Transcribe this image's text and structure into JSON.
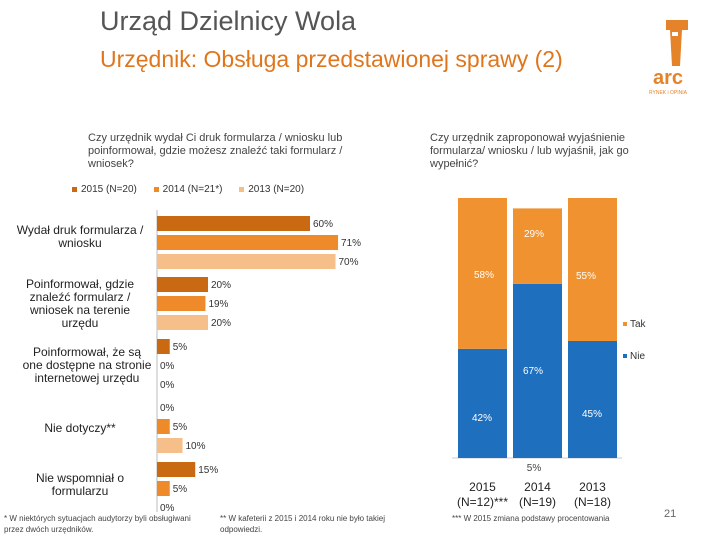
{
  "header": {
    "title": "Urząd Dzielnicy Wola",
    "subtitle": "Urzędnik: Obsługa przedstawionej sprawy (2)"
  },
  "logo": {
    "text": "arc",
    "tagline": "RYNEK i OPINIA"
  },
  "chart_data": [
    {
      "type": "bar",
      "orientation": "horizontal",
      "title": "Czy urzędnik wydał Ci druk formularza / wniosku lub poinformował, gdzie możesz znaleźć taki formularz / wniosek?",
      "categories": [
        "Wydał druk formularza / wniosku",
        "Poinformował, gdzie znaleźć formularz / wniosek na terenie urzędu",
        "Poinformował, że są one dostępne na stronie internetowej urzędu",
        "Nie dotyczy**",
        "Nie wspomniał o formularzu"
      ],
      "series": [
        {
          "name": "2015 (N=20)",
          "color": "#c96a13",
          "values": [
            60,
            20,
            5,
            0,
            15
          ],
          "labels": [
            "60%",
            "20%",
            "5%",
            "0%",
            "15%"
          ]
        },
        {
          "name": "2014 (N=21*)",
          "color": "#ee8a2a",
          "values": [
            71,
            19,
            0,
            5,
            5
          ],
          "labels": [
            "71%",
            "19%",
            "0%",
            "5%",
            "5%"
          ]
        },
        {
          "name": "2013 (N=20)",
          "color": "#f6be88",
          "values": [
            70,
            20,
            0,
            10,
            0
          ],
          "labels": [
            "70%",
            "20%",
            "0%",
            "10%",
            "0%"
          ]
        }
      ],
      "xlim": [
        0,
        100
      ]
    },
    {
      "type": "bar",
      "stacked": true,
      "title": "Czy urzędnik zaproponował wyjaśnienie formularza/ wniosku / lub wyjaśnił, jak go wypełnić?",
      "categories": [
        "2015 (N=12)***",
        "2014 (N=19)",
        "2013 (N=18)"
      ],
      "category_lines": [
        [
          "2015",
          "(N=12)***"
        ],
        [
          "2014",
          "(N=19)"
        ],
        [
          "2013",
          "(N=18)"
        ]
      ],
      "series": [
        {
          "name": "Nie",
          "color": "#1f6fbf",
          "values": [
            42,
            67,
            45
          ],
          "labels": [
            "42%",
            "67%",
            "45%"
          ]
        },
        {
          "name": "Tak",
          "color": "#f0922f",
          "values": [
            58,
            29,
            55
          ],
          "labels": [
            "58%",
            "29%",
            "55%"
          ]
        },
        {
          "name": "",
          "color": "#ffffff",
          "values": [
            0,
            5,
            0
          ],
          "labels": [
            "",
            "5%",
            ""
          ]
        }
      ],
      "ylim": [
        0,
        100
      ],
      "legend": [
        "Tak",
        "Nie"
      ]
    }
  ],
  "footnotes": {
    "f1": "* W niektórych sytuacjach audytorzy byli obsługiwani przez dwóch urzędników.",
    "f2": "** W kafeterii z 2015 i 2014 roku nie było takiej odpowiedzi.",
    "f3": "*** W 2015 zmiana podstawy procentowania"
  },
  "page_number": "21"
}
